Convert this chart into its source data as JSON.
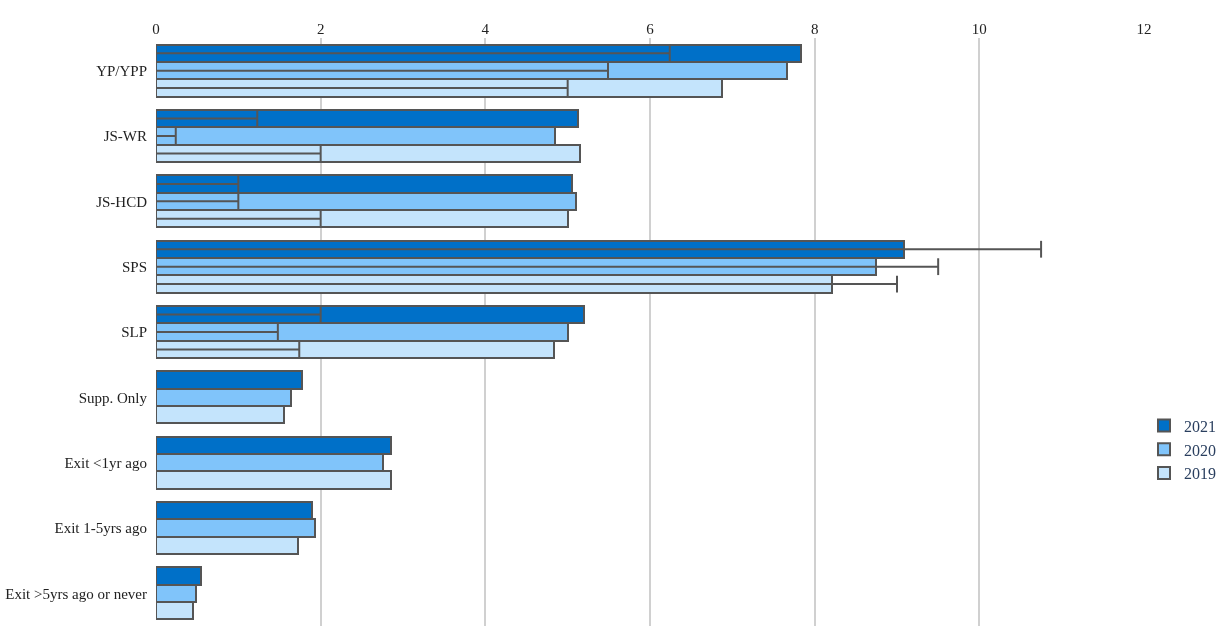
{
  "chart_data": {
    "type": "bar",
    "orientation": "horizontal",
    "categories": [
      "YP/YPP",
      "JS-WR",
      "JS-HCD",
      "SPS",
      "SLP",
      "Supp. Only",
      "Exit <1yr ago",
      "Exit 1-5yrs ago",
      "Exit >5yrs ago or never"
    ],
    "series": [
      {
        "name": "2021",
        "color": "#0070c8",
        "values": [
          7.84,
          5.13,
          5.05,
          9.09,
          5.2,
          1.77,
          2.86,
          1.89,
          0.55
        ],
        "errors": [
          [
            0,
            6.24
          ],
          [
            0,
            1.23
          ],
          [
            0,
            1.0
          ],
          [
            0,
            10.75
          ],
          [
            0,
            2.0
          ],
          null,
          null,
          null,
          null
        ]
      },
      {
        "name": "2020",
        "color": "#80c4fa",
        "values": [
          7.66,
          4.85,
          5.1,
          8.75,
          5.0,
          1.64,
          2.76,
          1.93,
          0.49
        ],
        "errors": [
          [
            0,
            5.49
          ],
          [
            0,
            0.24
          ],
          [
            0,
            1.0
          ],
          [
            0,
            9.5
          ],
          [
            0,
            1.48
          ],
          null,
          null,
          null,
          null
        ]
      },
      {
        "name": "2019",
        "color": "#c4e4fc",
        "values": [
          6.87,
          5.15,
          5.0,
          8.21,
          4.83,
          1.55,
          2.85,
          1.72,
          0.45
        ],
        "errors": [
          [
            0,
            5.0
          ],
          [
            0,
            2.0
          ],
          [
            0,
            2.0
          ],
          [
            0,
            9.0
          ],
          [
            0,
            1.74
          ],
          null,
          null,
          null,
          null
        ]
      }
    ],
    "xlim": [
      0,
      12
    ],
    "xticks": [
      0,
      2,
      4,
      6,
      8,
      10,
      12
    ],
    "grid": "x",
    "legend": "right"
  }
}
